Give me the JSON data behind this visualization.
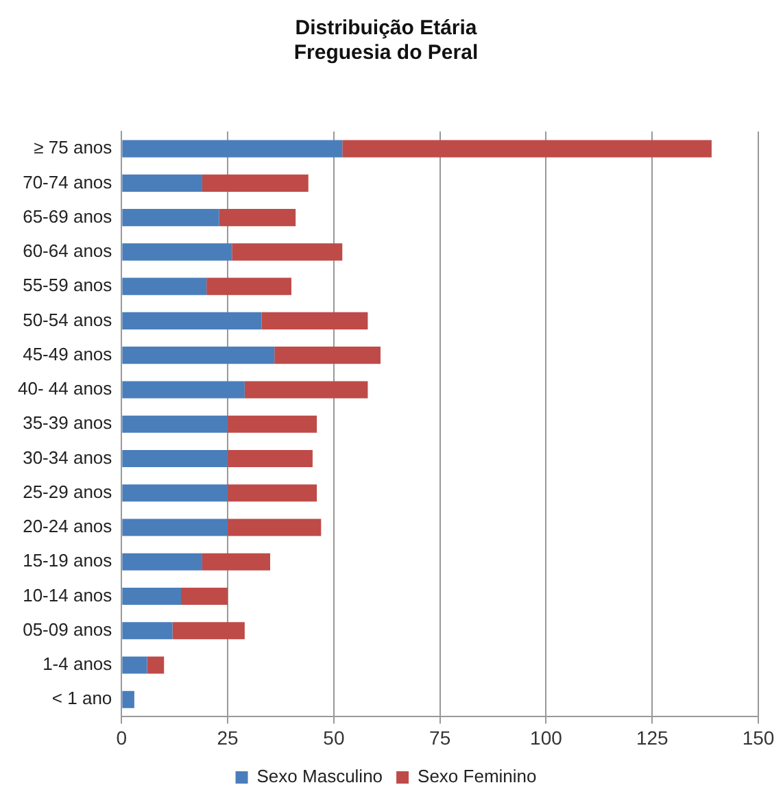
{
  "chart_data": {
    "type": "bar",
    "orientation": "horizontal",
    "stacked": true,
    "title": [
      "Distribuição Etária",
      "Freguesia do Peral"
    ],
    "categories": [
      "≥ 75 anos",
      "70-74 anos",
      "65-69 anos",
      "60-64 anos",
      "55-59 anos",
      "50-54 anos",
      "45-49 anos",
      "40- 44 anos",
      "35-39 anos",
      "30-34 anos",
      "25-29 anos",
      "20-24 anos",
      "15-19 anos",
      "10-14 anos",
      "05-09 anos",
      "1-4 anos",
      "< 1 ano"
    ],
    "series": [
      {
        "name": "Sexo Masculino",
        "color": "#4a7ebb",
        "values": [
          52,
          19,
          23,
          26,
          20,
          33,
          36,
          29,
          25,
          25,
          25,
          25,
          19,
          14,
          12,
          6,
          3
        ]
      },
      {
        "name": "Sexo Feminino",
        "color": "#be4b48",
        "values": [
          87,
          25,
          18,
          26,
          20,
          25,
          25,
          29,
          21,
          20,
          21,
          22,
          16,
          11,
          17,
          4,
          0
        ]
      }
    ],
    "xlim": [
      0,
      150
    ],
    "xticks": [
      0,
      25,
      50,
      75,
      100,
      125,
      150
    ],
    "grid": "x",
    "legend": "bottom"
  }
}
